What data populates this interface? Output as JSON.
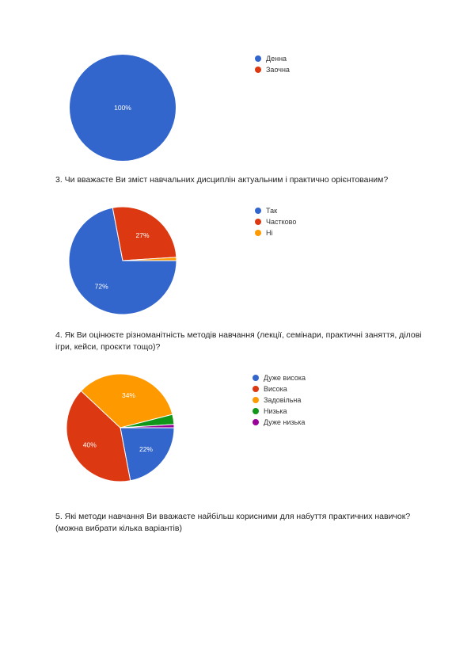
{
  "questions": {
    "q3": "3. Чи вважаєте Ви зміст навчальних дисциплін актуальним і практично орієнтованим?",
    "q4": "4. Як Ви оцінюєте різноманітність методів навчання (лекції, семінари, практичні заняття, ділові ігри, кейси, проєкти тощо)?",
    "q5": "5. Які методи навчання Ви вважаєте найбільш корисними для набуття практичних навичок? (можна вибрати кілька варіантів)"
  },
  "chart_data": [
    {
      "type": "pie",
      "categories": [
        "Денна",
        "Заочна"
      ],
      "values": [
        100,
        0
      ],
      "colors": [
        "#3366cc",
        "#dc3912"
      ],
      "data_labels": [
        "100%",
        ""
      ],
      "legend": "right"
    },
    {
      "type": "pie",
      "categories": [
        "Так",
        "Частково",
        "Ні"
      ],
      "values": [
        72,
        27,
        1
      ],
      "colors": [
        "#3366cc",
        "#dc3912",
        "#ff9900"
      ],
      "data_labels": [
        "72%",
        "27%",
        ""
      ],
      "legend": "right"
    },
    {
      "type": "pie",
      "categories": [
        "Дуже висока",
        "Висока",
        "Задовільна",
        "Низька",
        "Дуже низька"
      ],
      "values": [
        22,
        40,
        34,
        3,
        1
      ],
      "colors": [
        "#3366cc",
        "#dc3912",
        "#ff9900",
        "#109618",
        "#990099"
      ],
      "data_labels": [
        "22%",
        "40%",
        "34%",
        "",
        ""
      ],
      "legend": "right"
    }
  ]
}
